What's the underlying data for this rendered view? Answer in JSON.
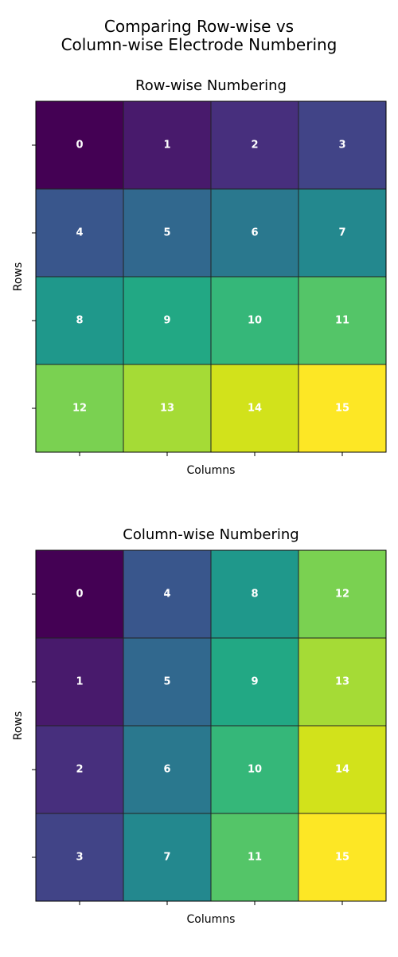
{
  "figure": {
    "title_lines": [
      "Comparing Row-wise vs",
      "Column-wise Electrode Numbering"
    ]
  },
  "chart_data": [
    {
      "type": "heatmap",
      "title": "Row-wise Numbering",
      "xlabel": "Columns",
      "ylabel": "Rows",
      "rows": 4,
      "cols": 4,
      "values": [
        [
          0,
          1,
          2,
          3
        ],
        [
          4,
          5,
          6,
          7
        ],
        [
          8,
          9,
          10,
          11
        ],
        [
          12,
          13,
          14,
          15
        ]
      ],
      "value_range": [
        0,
        15
      ],
      "colormap": "viridis",
      "tick_labels": "none"
    },
    {
      "type": "heatmap",
      "title": "Column-wise Numbering",
      "xlabel": "Columns",
      "ylabel": "Rows",
      "rows": 4,
      "cols": 4,
      "values": [
        [
          0,
          4,
          8,
          12
        ],
        [
          1,
          5,
          9,
          13
        ],
        [
          2,
          6,
          10,
          14
        ],
        [
          3,
          7,
          11,
          15
        ]
      ],
      "value_range": [
        0,
        15
      ],
      "colormap": "viridis",
      "tick_labels": "none"
    }
  ],
  "colors": {
    "palette": [
      "#440154",
      "#481a6c",
      "#472f7d",
      "#414487",
      "#39568c",
      "#31688e",
      "#2a788e",
      "#23888e",
      "#1f988b",
      "#22a884",
      "#35b779",
      "#54c568",
      "#7ad151",
      "#a5db36",
      "#d2e21b",
      "#fde725"
    ],
    "cell_text": "#ffffff",
    "grid_line": "#222222"
  }
}
